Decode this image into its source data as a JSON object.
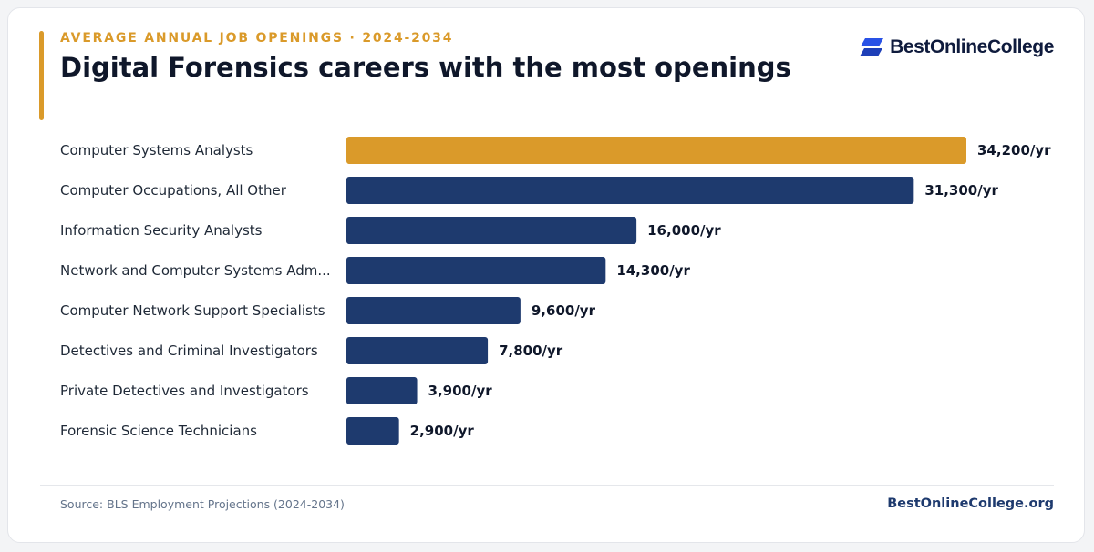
{
  "header": {
    "eyebrow": "AVERAGE ANNUAL JOB OPENINGS · 2024-2034",
    "title": "Digital Forensics careers with the most openings",
    "brand": "BestOnlineCollege"
  },
  "colors": {
    "highlight": "#da9a2a",
    "bar": "#1e3a6e",
    "label": "#1f2937",
    "value": "#0f172a"
  },
  "chart_data": {
    "type": "bar",
    "orientation": "horizontal",
    "categories": [
      "Computer Systems Analysts",
      "Computer Occupations, All Other",
      "Information Security Analysts",
      "Network and Computer Systems Adm...",
      "Computer Network Support Specialists",
      "Detectives and Criminal Investigators",
      "Private Detectives and Investigators",
      "Forensic Science Technicians"
    ],
    "values": [
      34200,
      31300,
      16000,
      14300,
      9600,
      7800,
      3900,
      2900
    ],
    "value_labels": [
      "34,200/yr",
      "31,300/yr",
      "16,000/yr",
      "14,300/yr",
      "9,600/yr",
      "7,800/yr",
      "3,900/yr",
      "2,900/yr"
    ],
    "highlight_index": 0,
    "xlim": [
      0,
      34200
    ],
    "grid": false,
    "legend": "none"
  },
  "footer": {
    "source": "Source: BLS Employment Projections (2024-2034)",
    "site": "BestOnlineCollege.org"
  }
}
